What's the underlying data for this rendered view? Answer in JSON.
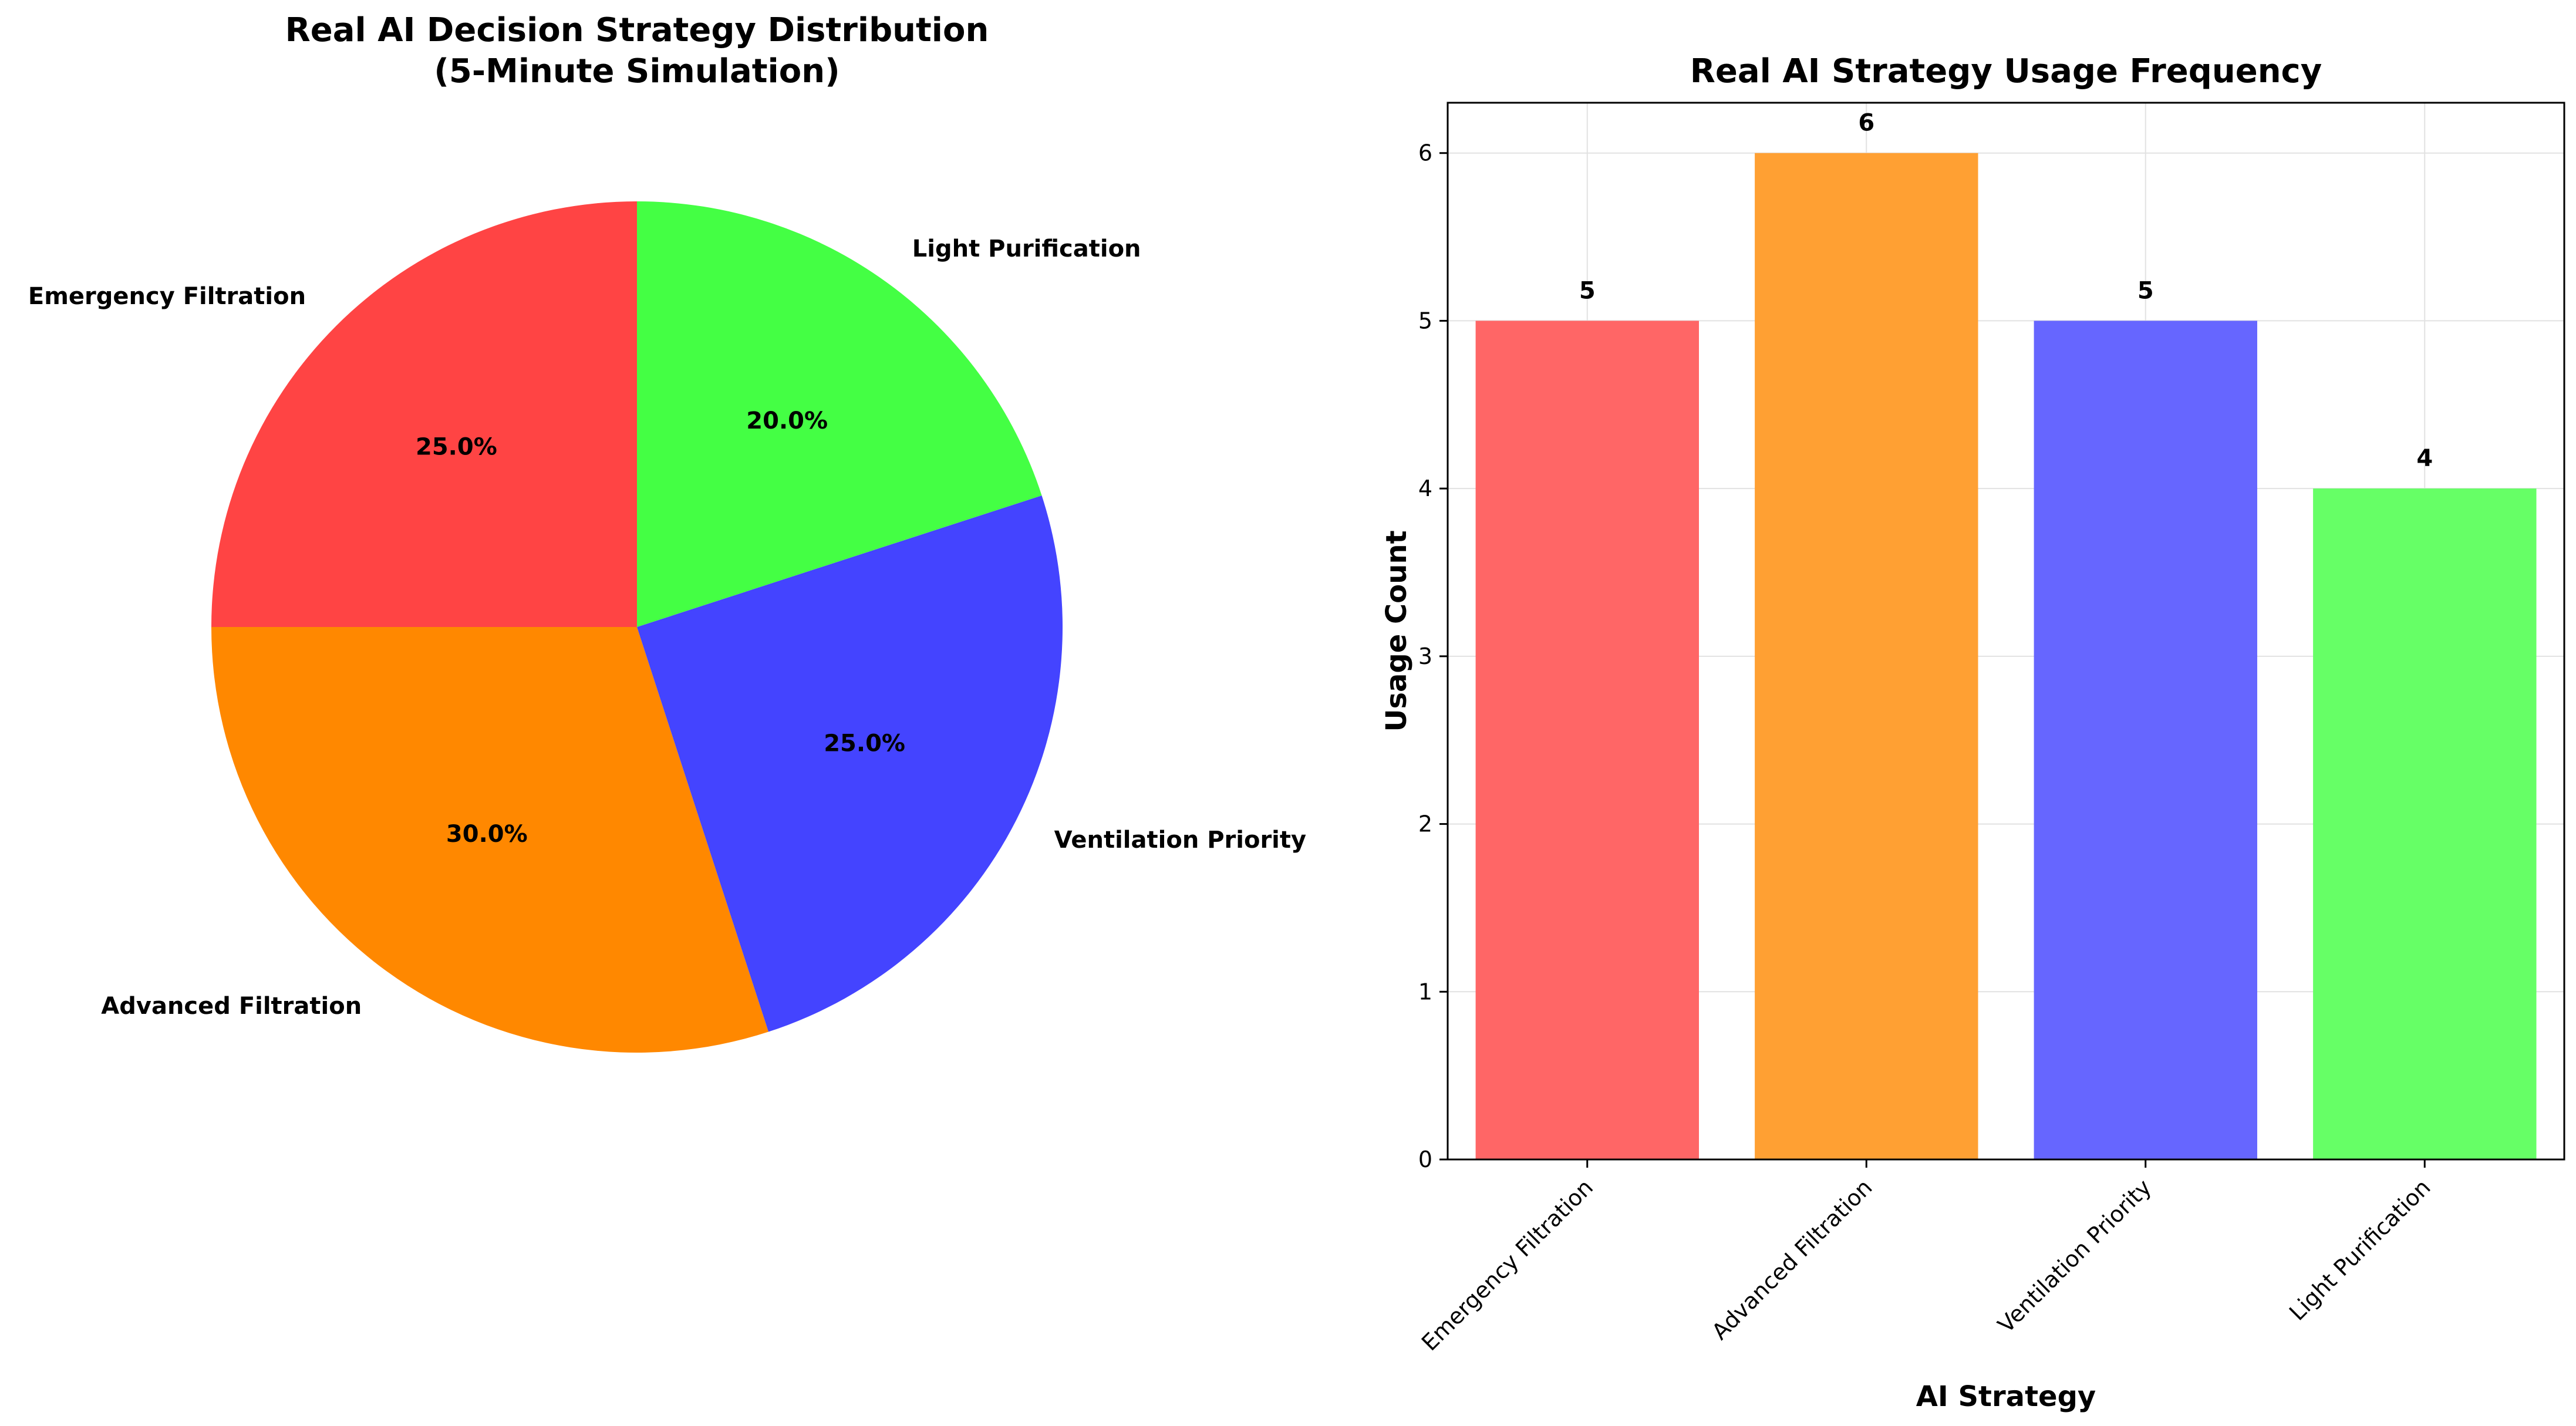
{
  "chart_data": [
    {
      "type": "pie",
      "title": "Real AI Decision Strategy Distribution\n(5-Minute Simulation)",
      "labels": [
        "Emergency Filtration",
        "Advanced Filtration",
        "Ventilation Priority",
        "Light Purification"
      ],
      "values": [
        25.0,
        30.0,
        25.0,
        20.0
      ],
      "percent_labels": [
        "25.0%",
        "30.0%",
        "25.0%",
        "20.0%"
      ],
      "colors": [
        "#ff4444",
        "#ff8800",
        "#4444ff",
        "#44ff44"
      ],
      "start_angle_deg": 90,
      "direction": "counterclockwise"
    },
    {
      "type": "bar",
      "title": "Real AI Strategy Usage Frequency",
      "xlabel": "AI Strategy",
      "ylabel": "Usage Count",
      "categories": [
        "Emergency Filtration",
        "Advanced Filtration",
        "Ventilation Priority",
        "Light Purification"
      ],
      "values": [
        5,
        6,
        5,
        4
      ],
      "value_labels": [
        "5",
        "6",
        "5",
        "4"
      ],
      "colors": [
        "#ff6666",
        "#ffa033",
        "#6666ff",
        "#66ff66"
      ],
      "ylim": [
        0,
        6.3
      ],
      "yticks": [
        "0",
        "1",
        "2",
        "3",
        "4",
        "5",
        "6"
      ],
      "grid": true
    }
  ]
}
